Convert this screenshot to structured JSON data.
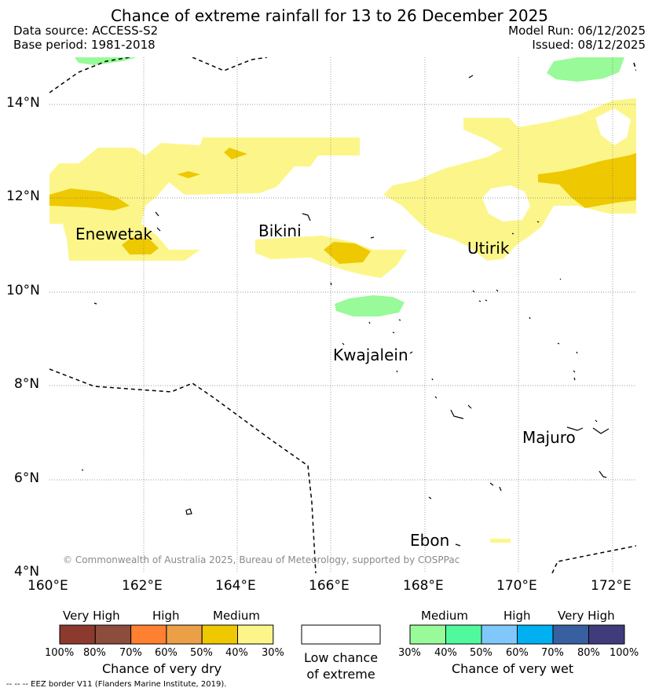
{
  "title": "Chance of extreme rainfall for 13 to 26 December 2025",
  "data_source": "Data source: ACCESS-S2",
  "base_period": "Base period: 1981-2018",
  "model_run": "Model Run: 06/12/2025",
  "issued": "Issued: 08/12/2025",
  "copyright": "© Commonwealth of Australia 2025, Bureau of Meteorology, supported by COSPPac",
  "lon_ticks": [
    "160°E",
    "162°E",
    "164°E",
    "166°E",
    "168°E",
    "170°E",
    "172°E"
  ],
  "lat_ticks": [
    "14°N",
    "12°N",
    "10°N",
    "8°N",
    "6°N",
    "4°N"
  ],
  "places": {
    "enewetak": "Enewetak",
    "bikini": "Bikini",
    "utirik": "Utirik",
    "kwajalein": "Kwajalein",
    "majuro": "Majuro",
    "ebon": "Ebon"
  },
  "dry_legend": {
    "levels": [
      "Very High",
      "High",
      "Medium"
    ],
    "pcts": [
      "100%",
      "80%",
      "70%",
      "60%",
      "50%",
      "40%",
      "30%"
    ],
    "colors": [
      "#8c3a2e",
      "#8c4d3c",
      "#ff8030",
      "#eba048",
      "#eec800",
      "#fcf68a"
    ],
    "title": "Chance of very dry"
  },
  "low_legend": {
    "line1": "Low chance",
    "line2": "of extreme",
    "color": "#ffffff"
  },
  "wet_legend": {
    "levels": [
      "Medium",
      "High",
      "Very High"
    ],
    "pcts": [
      "30%",
      "40%",
      "50%",
      "60%",
      "70%",
      "80%",
      "100%"
    ],
    "colors": [
      "#98fa98",
      "#50fa9c",
      "#80c8fc",
      "#00b0f0",
      "#3860a0",
      "#403c7c"
    ],
    "title": "Chance of very wet"
  },
  "footnote": "--  --  -- EEZ border V11 (Flanders Marine Institute, 2019)."
}
